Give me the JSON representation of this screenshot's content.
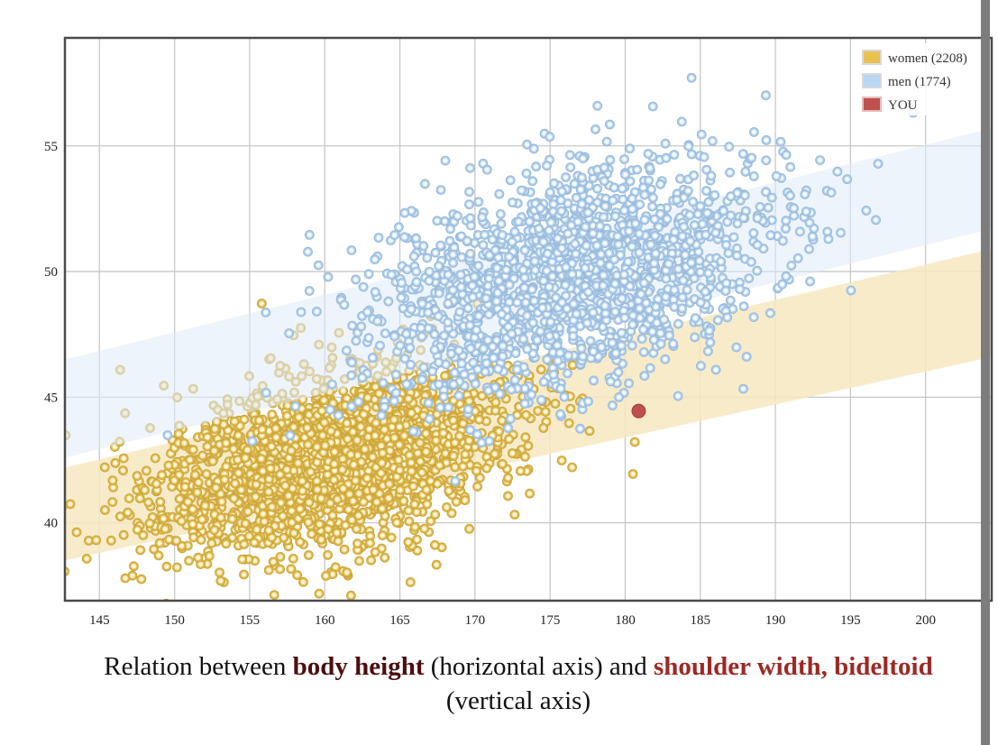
{
  "chart_data": {
    "type": "scatter",
    "title": "Relation between body height (horizontal axis) and shoulder width, bideltoid (vertical axis)",
    "caption": {
      "prefix": "Relation between ",
      "x_measure": "body height",
      "middle": " (horizontal axis) and ",
      "y_measure": "shoulder width, bideltoid",
      "suffix": "(vertical axis)"
    },
    "xlabel": "body height",
    "ylabel": "shoulder width, bideltoid",
    "xlim": [
      142.7,
      204.4
    ],
    "ylim": [
      36.9,
      59.3
    ],
    "x_ticks": [
      145,
      150,
      155,
      160,
      165,
      170,
      175,
      180,
      185,
      190,
      195,
      200
    ],
    "y_ticks": [
      40,
      45,
      50,
      55
    ],
    "grid": true,
    "legend": {
      "placement": "top-right",
      "entries": [
        {
          "label": "women (2208)",
          "color": "#e8c24e",
          "series": "women"
        },
        {
          "label": "men (1774)",
          "color": "#b9d7f3",
          "series": "men"
        },
        {
          "label": "YOU",
          "color": "#c0504d",
          "series": "you"
        }
      ]
    },
    "series": [
      {
        "name": "women",
        "count": 2208,
        "color": "#e8c24e",
        "distribution": {
          "mean_x": 160.5,
          "sd_x": 6.2,
          "mean_y": 42.6,
          "sd_y": 1.9,
          "corr": 0.42
        },
        "band": {
          "x": [
            142.7,
            204.4
          ],
          "upper": [
            42.2,
            50.9
          ],
          "lower": [
            38.5,
            46.6
          ]
        },
        "band_color": "#f6e7bf"
      },
      {
        "name": "men",
        "count": 1774,
        "color": "#b9d7f3",
        "distribution": {
          "mean_x": 176.5,
          "sd_x": 6.8,
          "mean_y": 49.8,
          "sd_y": 2.3,
          "corr": 0.4
        },
        "band": {
          "x": [
            142.7,
            204.4
          ],
          "upper": [
            46.5,
            55.7
          ],
          "lower": [
            42.6,
            51.7
          ]
        },
        "band_color": "#dfebfa"
      }
    ],
    "you_point": {
      "label": "YOU",
      "x": 180.9,
      "y": 44.45,
      "color": "#c0504d"
    }
  }
}
